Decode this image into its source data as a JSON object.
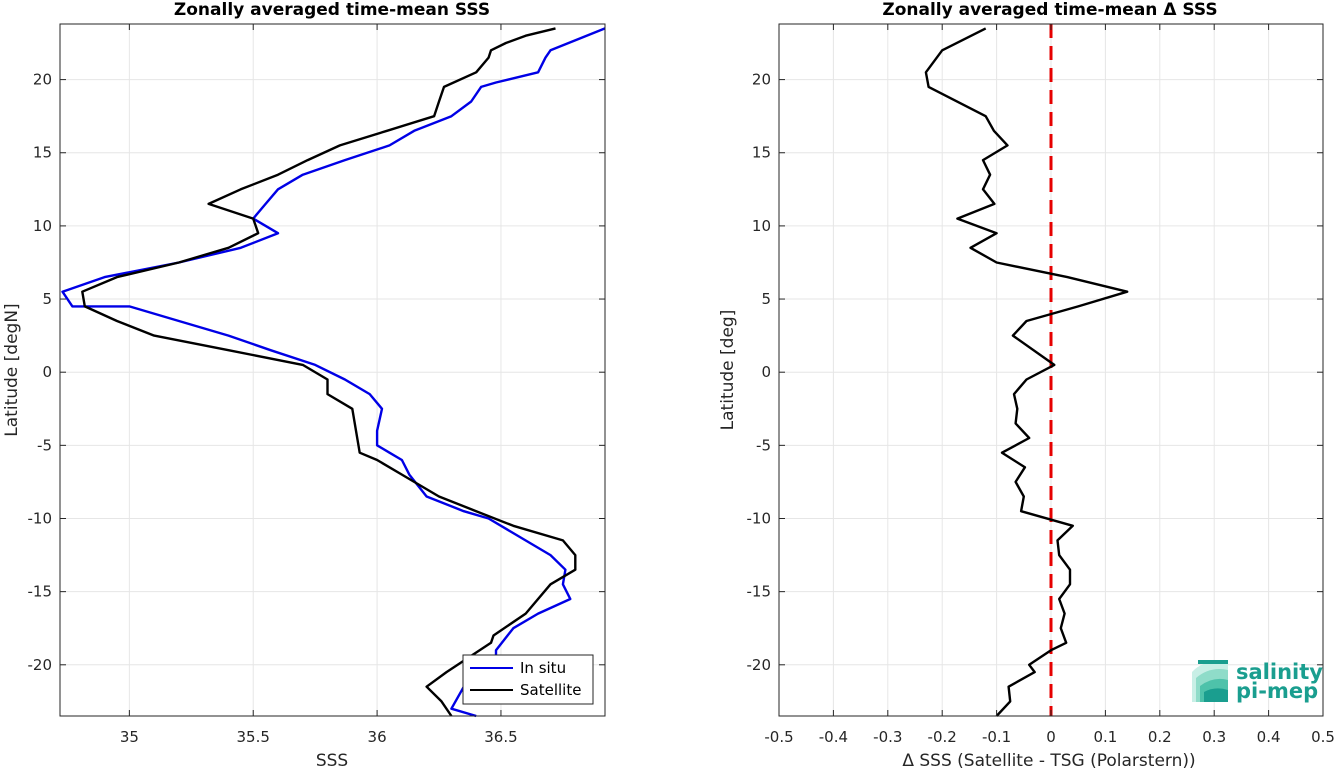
{
  "chart_data": [
    {
      "type": "line",
      "title": "Zonally averaged time-mean SSS",
      "xlabel": "SSS",
      "ylabel": "Latitude [degN]",
      "xlim": [
        34.72,
        36.92
      ],
      "ylim": [
        -23.5,
        23.8
      ],
      "xticks": [
        35,
        35.5,
        36,
        36.5
      ],
      "yticks": [
        -20,
        -15,
        -10,
        -5,
        0,
        5,
        10,
        15,
        20
      ],
      "grid": true,
      "legend_position": "bottom-right",
      "series": [
        {
          "name": "In situ",
          "color": "#0000e6",
          "x": [
            36.4,
            36.3,
            36.35,
            36.48,
            36.48,
            36.55,
            36.65,
            36.78,
            36.75,
            36.76,
            36.7,
            36.55,
            36.45,
            36.35,
            36.2,
            36.13,
            36.1,
            36.05,
            36.0,
            36.0,
            36.02,
            35.97,
            35.87,
            35.75,
            35.57,
            35.4,
            35.2,
            35.0,
            34.77,
            34.73,
            34.9,
            35.2,
            35.45,
            35.6,
            35.5,
            35.55,
            35.6,
            35.7,
            35.87,
            36.05,
            36.15,
            36.3,
            36.38,
            36.42,
            36.48,
            36.65,
            36.68,
            36.7,
            36.92
          ],
          "y": [
            -23.5,
            -23.0,
            -21.5,
            -20.0,
            -19.0,
            -17.5,
            -16.5,
            -15.5,
            -14.5,
            -13.5,
            -12.5,
            -11.0,
            -10.0,
            -9.5,
            -8.5,
            -7.0,
            -6.0,
            -5.5,
            -5.0,
            -4.0,
            -2.5,
            -1.5,
            -0.5,
            0.5,
            1.5,
            2.5,
            3.5,
            4.5,
            4.5,
            5.5,
            6.5,
            7.5,
            8.5,
            9.5,
            10.5,
            11.5,
            12.5,
            13.5,
            14.5,
            15.5,
            16.5,
            17.5,
            18.5,
            19.5,
            19.8,
            20.5,
            21.5,
            22.0,
            23.5
          ]
        },
        {
          "name": "Satellite",
          "color": "#000000",
          "x": [
            36.3,
            36.26,
            36.2,
            36.28,
            36.46,
            36.47,
            36.6,
            36.7,
            36.8,
            36.8,
            36.75,
            36.55,
            36.4,
            36.25,
            36.1,
            36.0,
            35.93,
            35.9,
            35.8,
            35.8,
            35.7,
            35.4,
            35.1,
            34.95,
            34.82,
            34.81,
            34.95,
            35.2,
            35.4,
            35.52,
            35.5,
            35.32,
            35.45,
            35.6,
            35.72,
            35.85,
            36.04,
            36.23,
            36.25,
            36.27,
            36.4,
            36.45,
            36.46,
            36.52,
            36.6,
            36.72
          ],
          "y": [
            -23.5,
            -22.5,
            -21.5,
            -20.5,
            -18.5,
            -18.0,
            -16.5,
            -14.5,
            -13.5,
            -12.5,
            -11.5,
            -10.5,
            -9.5,
            -8.5,
            -7.0,
            -6.0,
            -5.5,
            -2.5,
            -1.5,
            -0.5,
            0.5,
            1.5,
            2.5,
            3.5,
            4.5,
            5.5,
            6.5,
            7.5,
            8.5,
            9.5,
            10.5,
            11.5,
            12.5,
            13.5,
            14.5,
            15.5,
            16.5,
            17.5,
            18.5,
            19.5,
            20.5,
            21.5,
            22.0,
            22.5,
            23.0,
            23.5
          ]
        }
      ]
    },
    {
      "type": "line",
      "title": "Zonally averaged time-mean Δ SSS",
      "xlabel": "Δ SSS (Satellite - TSG (Polarstern))",
      "ylabel": "Latitude [deg]",
      "xlim": [
        -0.5,
        0.5
      ],
      "ylim": [
        -23.5,
        23.8
      ],
      "xticks": [
        -0.5,
        -0.4,
        -0.3,
        -0.2,
        -0.1,
        0,
        0.1,
        0.2,
        0.3,
        0.4,
        0.5
      ],
      "yticks": [
        -20,
        -15,
        -10,
        -5,
        0,
        5,
        10,
        15,
        20
      ],
      "grid": true,
      "reference_line": {
        "x": 0,
        "color": "#e60000",
        "style": "dashed"
      },
      "series": [
        {
          "color": "#000000",
          "x": [
            -0.1,
            -0.075,
            -0.078,
            -0.03,
            -0.04,
            0.0,
            0.028,
            0.018,
            0.025,
            0.015,
            0.035,
            0.035,
            0.015,
            0.012,
            0.04,
            -0.055,
            -0.05,
            -0.065,
            -0.048,
            -0.09,
            -0.04,
            -0.065,
            -0.062,
            -0.068,
            -0.045,
            0.006,
            -0.07,
            -0.045,
            0.05,
            0.14,
            0.03,
            -0.1,
            -0.148,
            -0.1,
            -0.172,
            -0.104,
            -0.125,
            -0.112,
            -0.125,
            -0.08,
            -0.105,
            -0.12,
            -0.225,
            -0.23,
            -0.2,
            -0.12
          ],
          "y": [
            -23.5,
            -22.5,
            -21.5,
            -20.5,
            -20.0,
            -19.0,
            -18.5,
            -17.5,
            -16.5,
            -15.5,
            -14.5,
            -13.5,
            -12.5,
            -11.5,
            -10.5,
            -9.5,
            -8.5,
            -7.5,
            -6.5,
            -5.5,
            -4.5,
            -3.5,
            -2.5,
            -1.5,
            -0.5,
            0.5,
            2.5,
            3.5,
            4.5,
            5.5,
            6.5,
            7.5,
            8.5,
            9.5,
            10.5,
            11.5,
            12.5,
            13.5,
            14.5,
            15.5,
            16.5,
            17.5,
            19.5,
            20.5,
            22.0,
            23.5
          ]
        }
      ]
    }
  ],
  "logo": {
    "line1": "salinity",
    "line2": "pi-mep"
  }
}
